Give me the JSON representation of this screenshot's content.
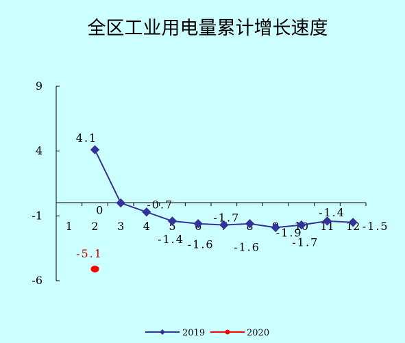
{
  "title": "全区工业用电量累计增长速度",
  "chart_data": {
    "type": "line",
    "title": "全区工业用电量累计增长速度",
    "xlabel": "",
    "ylabel": "",
    "x": [
      "1",
      "2",
      "3",
      "4",
      "5",
      "6",
      "7",
      "8",
      "9",
      "10",
      "11",
      "12"
    ],
    "ylim": [
      -6,
      9
    ],
    "yticks": [
      9,
      4,
      -1,
      -6
    ],
    "grid": false,
    "legend_position": "bottom",
    "series": [
      {
        "name": "2019",
        "color": "#333399",
        "marker": "diamond",
        "x": [
          "2",
          "3",
          "4",
          "5",
          "6",
          "7",
          "8",
          "9",
          "10",
          "11",
          "12"
        ],
        "values": [
          4.1,
          0,
          -0.7,
          -1.4,
          -1.6,
          -1.7,
          -1.6,
          -1.9,
          -1.7,
          -1.4,
          -1.5
        ],
        "labels": [
          "4.1",
          "0",
          "-0.7",
          "-1.4",
          "-1.6",
          "-1.7",
          "-1.6",
          "-1.9",
          "-1.7",
          "-1.4",
          "-1.5"
        ]
      },
      {
        "name": "2020",
        "color": "#ff0000",
        "marker": "circle",
        "x": [
          "2"
        ],
        "values": [
          -5.1
        ],
        "labels": [
          "-5.1"
        ]
      }
    ]
  }
}
